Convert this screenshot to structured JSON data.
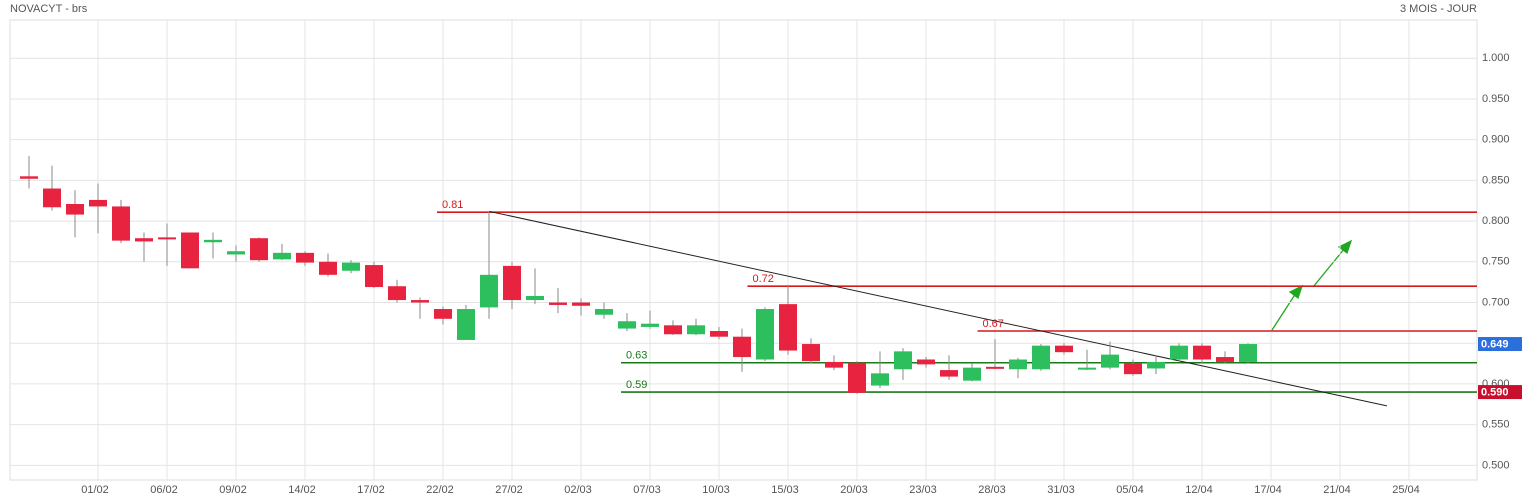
{
  "chart_data": {
    "type": "candlestick",
    "title": "NOVACYT - brs",
    "subtitle": "3 MOIS - JOUR",
    "categories": [
      null,
      null,
      null,
      "01/02",
      null,
      null,
      "06/02",
      null,
      null,
      "09/02",
      null,
      null,
      "14/02",
      null,
      null,
      "17/02",
      null,
      null,
      "22/02",
      null,
      null,
      "27/02",
      null,
      null,
      "02/03",
      null,
      null,
      "07/03",
      null,
      null,
      "10/03",
      null,
      null,
      "15/03",
      null,
      null,
      "20/03",
      null,
      null,
      "23/03",
      null,
      null,
      "28/03",
      null,
      null,
      "31/03",
      null,
      null,
      "05/04",
      null,
      null,
      "12/04",
      null,
      null,
      "17/04",
      null,
      null,
      "21/04",
      null,
      null,
      "25/04",
      null,
      null
    ],
    "open": [
      0.855,
      0.84,
      0.821,
      0.826,
      0.818,
      0.779,
      0.78,
      0.786,
      0.774,
      0.759,
      0.779,
      0.753,
      0.761,
      0.75,
      0.739,
      0.746,
      0.72,
      0.703,
      0.692,
      0.654,
      0.694,
      0.745,
      0.703,
      0.7,
      0.7,
      0.685,
      0.668,
      0.67,
      0.672,
      0.661,
      0.665,
      0.658,
      0.63,
      0.698,
      0.649,
      0.627,
      0.626,
      0.598,
      0.618,
      0.63,
      0.617,
      0.604,
      0.621,
      0.618,
      0.618,
      0.647,
      0.618,
      0.62,
      0.625,
      0.619,
      0.63,
      0.647,
      0.633,
      0.627,
      null,
      null,
      null,
      null,
      null,
      null,
      null,
      null,
      null
    ],
    "high": [
      0.88,
      0.868,
      0.838,
      0.846,
      0.826,
      0.786,
      0.797,
      0.786,
      0.786,
      0.77,
      0.78,
      0.772,
      0.763,
      0.76,
      0.752,
      0.75,
      0.728,
      0.706,
      0.695,
      0.697,
      0.812,
      0.75,
      0.742,
      0.718,
      0.705,
      0.7,
      0.687,
      0.69,
      0.678,
      0.68,
      0.67,
      0.668,
      0.694,
      0.72,
      0.656,
      0.635,
      0.628,
      0.64,
      0.644,
      0.633,
      0.635,
      0.625,
      0.655,
      0.632,
      0.649,
      0.65,
      0.642,
      0.652,
      0.63,
      0.635,
      0.65,
      0.65,
      0.64,
      0.65,
      null,
      null,
      null,
      null,
      null,
      null,
      null,
      null,
      null
    ],
    "low": [
      0.84,
      0.813,
      0.78,
      0.785,
      0.773,
      0.75,
      0.745,
      0.742,
      0.754,
      0.75,
      0.75,
      0.752,
      0.745,
      0.732,
      0.736,
      0.718,
      0.7,
      0.68,
      0.673,
      0.654,
      0.68,
      0.692,
      0.698,
      0.687,
      0.684,
      0.68,
      0.665,
      0.668,
      0.66,
      0.66,
      0.655,
      0.615,
      0.628,
      0.636,
      0.625,
      0.617,
      0.588,
      0.595,
      0.605,
      0.62,
      0.605,
      0.603,
      0.618,
      0.607,
      0.616,
      0.636,
      0.617,
      0.618,
      0.61,
      0.612,
      0.628,
      0.625,
      0.625,
      0.625,
      null,
      null,
      null,
      null,
      null,
      null,
      null,
      null,
      null
    ],
    "close": [
      0.852,
      0.817,
      0.808,
      0.818,
      0.776,
      0.775,
      0.779,
      0.742,
      0.777,
      0.763,
      0.752,
      0.761,
      0.749,
      0.734,
      0.749,
      0.719,
      0.703,
      0.7,
      0.68,
      0.692,
      0.734,
      0.703,
      0.708,
      0.697,
      0.696,
      0.692,
      0.677,
      0.674,
      0.661,
      0.672,
      0.658,
      0.633,
      0.692,
      0.641,
      0.628,
      0.62,
      0.589,
      0.613,
      0.64,
      0.624,
      0.609,
      0.62,
      0.619,
      0.63,
      0.647,
      0.639,
      0.62,
      0.636,
      0.612,
      0.627,
      0.647,
      0.63,
      0.627,
      0.649,
      null,
      null,
      null,
      null,
      null,
      null,
      null,
      null,
      null
    ],
    "up_color": "#2dbf5e",
    "down_color": "#e8233f",
    "ylim": [
      0.482,
      1.047
    ],
    "yticks": [
      {
        "value": 0.5,
        "label": "0.500"
      },
      {
        "value": 0.55,
        "label": "0.550"
      },
      {
        "value": 0.6,
        "label": "0.600"
      },
      {
        "value": 0.65,
        "label": "0.650"
      },
      {
        "value": 0.7,
        "label": "0.700"
      },
      {
        "value": 0.75,
        "label": "0.750"
      },
      {
        "value": 0.8,
        "label": "0.800"
      },
      {
        "value": 0.85,
        "label": "0.850"
      },
      {
        "value": 0.9,
        "label": "0.900"
      },
      {
        "value": 0.95,
        "label": "0.950"
      },
      {
        "value": 1.0,
        "label": "1.000"
      }
    ],
    "grid": true,
    "levels": [
      {
        "value": 0.811,
        "label": "0.81",
        "color": "#d7191c"
      },
      {
        "value": 0.72,
        "label": "0.72",
        "color": "#d7191c"
      },
      {
        "value": 0.665,
        "label": "0.67",
        "color": "#d7191c"
      },
      {
        "value": 0.626,
        "label": "0.63",
        "color": "#1a7a1a"
      },
      {
        "value": 0.59,
        "label": "0.59",
        "color": "#1a7a1a"
      }
    ],
    "trendline": {
      "values": [
        0.812,
        0.573
      ],
      "color": "#222"
    },
    "price_tags": [
      {
        "value": 0.649,
        "label": "0.649",
        "color": "#2a6fdb"
      },
      {
        "value": 0.59,
        "label": "0.590",
        "color": "#c8102e"
      }
    ]
  }
}
